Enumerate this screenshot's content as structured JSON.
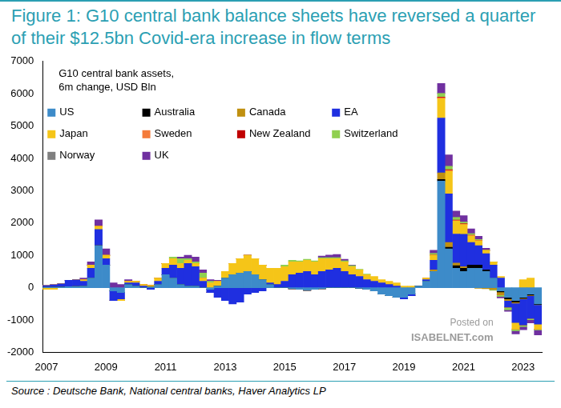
{
  "chart_data": {
    "type": "bar",
    "title": "Figure 1: G10 central bank balance sheets have reversed a quarter of their $12.5bn Covid-era increase in flow terms",
    "subtitle": [
      "G10 central bank assets,",
      "6m change, USD Bln"
    ],
    "source": "Source : Deutsche Bank, National central banks, Haver Analytics LP",
    "annotations": [
      "Posted on",
      "ISABELNET.com"
    ],
    "stacked": true,
    "grid": false,
    "legend": "upper left",
    "categories": [
      "2007",
      null,
      null,
      null,
      null,
      null,
      null,
      null,
      "2009",
      null,
      null,
      null,
      null,
      null,
      null,
      null,
      "2011",
      null,
      null,
      null,
      null,
      null,
      null,
      null,
      "2013",
      null,
      null,
      null,
      null,
      null,
      null,
      null,
      "2015",
      null,
      null,
      null,
      null,
      null,
      null,
      null,
      "2017",
      null,
      null,
      null,
      null,
      null,
      null,
      null,
      "2019",
      null,
      null,
      null,
      null,
      null,
      null,
      null,
      "2021",
      null,
      null,
      null,
      null,
      null,
      null,
      null,
      "2023",
      null,
      null
    ],
    "ylim": [
      -2000,
      7000
    ],
    "yticks": [
      -2000,
      -1000,
      0,
      1000,
      2000,
      3000,
      4000,
      5000,
      6000,
      7000
    ],
    "series": [
      {
        "name": "US",
        "color": "#3d8bc9",
        "values": [
          10,
          10,
          20,
          30,
          40,
          50,
          300,
          1300,
          700,
          -100,
          -150,
          100,
          50,
          0,
          20,
          100,
          400,
          300,
          100,
          50,
          50,
          0,
          -50,
          50,
          300,
          400,
          450,
          500,
          400,
          250,
          100,
          0,
          0,
          -30,
          -50,
          -80,
          -50,
          -30,
          0,
          0,
          0,
          0,
          -20,
          -50,
          -100,
          -200,
          -250,
          -300,
          -300,
          -200,
          50,
          200,
          500,
          3300,
          1200,
          600,
          500,
          600,
          600,
          500,
          300,
          -100,
          -300,
          -400,
          -300,
          -200,
          -500
        ]
      },
      {
        "name": "Australia",
        "color": "#000000",
        "values": [
          0,
          0,
          0,
          0,
          0,
          0,
          0,
          0,
          0,
          0,
          0,
          0,
          0,
          0,
          0,
          0,
          0,
          0,
          0,
          0,
          0,
          0,
          0,
          0,
          0,
          0,
          0,
          0,
          0,
          0,
          0,
          0,
          0,
          0,
          0,
          0,
          0,
          0,
          0,
          0,
          0,
          0,
          0,
          0,
          0,
          0,
          0,
          0,
          0,
          0,
          0,
          0,
          0,
          50,
          50,
          80,
          100,
          100,
          100,
          50,
          0,
          -30,
          -50,
          -50,
          -30,
          -30,
          -20
        ]
      },
      {
        "name": "Canada",
        "color": "#c09010",
        "values": [
          0,
          0,
          0,
          0,
          0,
          0,
          0,
          0,
          0,
          0,
          0,
          0,
          0,
          0,
          0,
          0,
          0,
          0,
          0,
          0,
          0,
          0,
          0,
          0,
          0,
          0,
          0,
          0,
          0,
          0,
          0,
          0,
          0,
          0,
          0,
          0,
          0,
          0,
          0,
          0,
          0,
          0,
          0,
          0,
          0,
          0,
          0,
          0,
          0,
          0,
          0,
          0,
          50,
          200,
          150,
          80,
          50,
          0,
          -20,
          -30,
          -50,
          -80,
          -50,
          -30,
          -20,
          -20,
          -10
        ]
      },
      {
        "name": "EA",
        "color": "#1f2fe0",
        "values": [
          50,
          80,
          100,
          200,
          200,
          150,
          300,
          500,
          200,
          -300,
          -200,
          50,
          100,
          50,
          -50,
          100,
          200,
          400,
          500,
          700,
          600,
          200,
          -100,
          -300,
          -400,
          -500,
          -450,
          -200,
          -150,
          -100,
          50,
          100,
          200,
          400,
          450,
          500,
          400,
          500,
          550,
          600,
          500,
          400,
          350,
          250,
          200,
          150,
          100,
          50,
          -50,
          -50,
          0,
          50,
          300,
          1700,
          1500,
          900,
          1000,
          700,
          600,
          500,
          400,
          300,
          -200,
          -600,
          -800,
          -700,
          -600
        ]
      },
      {
        "name": "Japan",
        "color": "#f5c518",
        "values": [
          -50,
          -50,
          0,
          0,
          0,
          50,
          100,
          100,
          100,
          0,
          -50,
          50,
          50,
          50,
          50,
          100,
          150,
          200,
          150,
          100,
          100,
          100,
          150,
          150,
          200,
          350,
          450,
          500,
          500,
          450,
          450,
          500,
          450,
          400,
          350,
          350,
          400,
          400,
          350,
          300,
          300,
          250,
          200,
          150,
          150,
          100,
          100,
          100,
          50,
          50,
          0,
          50,
          150,
          600,
          700,
          400,
          300,
          200,
          150,
          100,
          100,
          50,
          0,
          -200,
          250,
          300,
          -150
        ]
      },
      {
        "name": "Sweden",
        "color": "#f47b3a",
        "values": [
          0,
          0,
          0,
          0,
          0,
          0,
          0,
          0,
          0,
          0,
          0,
          0,
          0,
          0,
          0,
          0,
          0,
          0,
          0,
          0,
          0,
          0,
          0,
          0,
          0,
          0,
          0,
          0,
          0,
          0,
          0,
          0,
          0,
          0,
          0,
          0,
          0,
          0,
          0,
          0,
          0,
          0,
          0,
          0,
          0,
          0,
          0,
          0,
          0,
          0,
          0,
          0,
          10,
          30,
          30,
          20,
          20,
          20,
          10,
          0,
          -10,
          -10,
          0,
          0,
          0,
          0,
          0
        ]
      },
      {
        "name": "New Zealand",
        "color": "#c00000",
        "values": [
          0,
          0,
          0,
          0,
          0,
          0,
          0,
          0,
          0,
          0,
          0,
          0,
          0,
          0,
          0,
          0,
          0,
          0,
          0,
          0,
          0,
          0,
          0,
          0,
          0,
          0,
          0,
          0,
          0,
          0,
          0,
          0,
          0,
          0,
          0,
          0,
          0,
          0,
          0,
          0,
          0,
          0,
          0,
          0,
          0,
          0,
          0,
          0,
          0,
          0,
          0,
          0,
          0,
          20,
          20,
          10,
          10,
          0,
          0,
          0,
          0,
          0,
          0,
          0,
          0,
          0,
          0
        ]
      },
      {
        "name": "Switzerland",
        "color": "#90d050",
        "values": [
          0,
          0,
          0,
          0,
          0,
          0,
          0,
          0,
          0,
          0,
          0,
          0,
          0,
          0,
          0,
          0,
          0,
          50,
          150,
          50,
          50,
          150,
          50,
          0,
          0,
          0,
          0,
          0,
          0,
          0,
          0,
          0,
          50,
          50,
          30,
          30,
          30,
          30,
          30,
          30,
          30,
          30,
          20,
          20,
          0,
          0,
          0,
          0,
          0,
          0,
          0,
          0,
          50,
          100,
          100,
          80,
          50,
          50,
          30,
          20,
          -20,
          -50,
          -80,
          -50,
          -50,
          -40,
          -30
        ]
      },
      {
        "name": "Norway",
        "color": "#808080",
        "values": [
          0,
          0,
          0,
          0,
          0,
          0,
          0,
          0,
          0,
          0,
          0,
          0,
          0,
          0,
          0,
          0,
          0,
          0,
          0,
          0,
          0,
          0,
          0,
          0,
          0,
          0,
          0,
          0,
          0,
          0,
          0,
          0,
          0,
          0,
          0,
          0,
          0,
          0,
          0,
          0,
          0,
          0,
          0,
          0,
          0,
          0,
          0,
          0,
          0,
          0,
          0,
          0,
          0,
          20,
          10,
          0,
          0,
          0,
          0,
          0,
          0,
          0,
          0,
          0,
          0,
          0,
          0
        ]
      },
      {
        "name": "UK",
        "color": "#7030a0",
        "values": [
          0,
          0,
          0,
          0,
          0,
          50,
          100,
          200,
          200,
          150,
          100,
          50,
          0,
          0,
          0,
          0,
          0,
          0,
          50,
          100,
          150,
          100,
          50,
          30,
          0,
          0,
          0,
          0,
          0,
          0,
          0,
          0,
          0,
          0,
          0,
          0,
          0,
          50,
          80,
          100,
          50,
          20,
          0,
          0,
          0,
          0,
          0,
          0,
          0,
          0,
          0,
          0,
          100,
          300,
          350,
          200,
          200,
          150,
          100,
          50,
          0,
          -50,
          -50,
          -100,
          -100,
          -100,
          -150
        ]
      }
    ]
  }
}
